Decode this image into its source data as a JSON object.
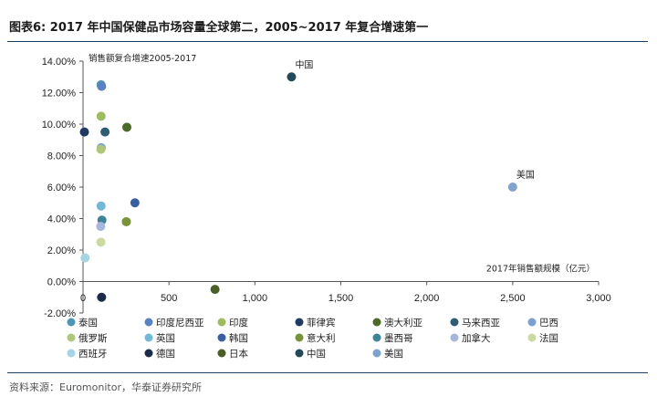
{
  "figure_title": "图表6:  2017 年中国保健品市场容量全球第二，2005~2017 年复合增速第一",
  "source": "资料来源：Euromonitor，华泰证券研究所",
  "chart_data": {
    "type": "scatter",
    "title": "",
    "xlabel": "2017年销售额规模（亿元）",
    "ylabel": "销售额复合增速2005-2017",
    "xlim": [
      0,
      3000
    ],
    "ylim": [
      -0.02,
      0.14
    ],
    "x_ticks": [
      0,
      500,
      1000,
      1500,
      2000,
      2500,
      3000
    ],
    "x_tick_labels": [
      "0",
      "500",
      "1,000",
      "1,500",
      "2,000",
      "2,500",
      "3,000"
    ],
    "y_ticks": [
      -0.02,
      0.0,
      0.02,
      0.04,
      0.06,
      0.08,
      0.1,
      0.12,
      0.14
    ],
    "y_tick_labels": [
      "-2.00%",
      "0.00%",
      "2.00%",
      "4.00%",
      "6.00%",
      "8.00%",
      "10.00%",
      "12.00%",
      "14.00%"
    ],
    "grid": false,
    "legend_position": "bottom",
    "series": [
      {
        "name": "泰国",
        "color": "#4f96b5",
        "x": 105,
        "y": 0.125
      },
      {
        "name": "印度尼西亚",
        "color": "#5a82c2",
        "x": 108,
        "y": 0.124
      },
      {
        "name": "印度",
        "color": "#9dbb61",
        "x": 105,
        "y": 0.105
      },
      {
        "name": "菲律宾",
        "color": "#1f3b63",
        "x": 8,
        "y": 0.095
      },
      {
        "name": "澳大利亚",
        "color": "#4d6b28",
        "x": 255,
        "y": 0.098
      },
      {
        "name": "马来西亚",
        "color": "#2e5c72",
        "x": 128,
        "y": 0.095
      },
      {
        "name": "巴西",
        "color": "#7b9fd1",
        "x": 106,
        "y": 0.085
      },
      {
        "name": "俄罗斯",
        "color": "#afc77a",
        "x": 104,
        "y": 0.084
      },
      {
        "name": "英国",
        "color": "#73b8d4",
        "x": 105,
        "y": 0.048
      },
      {
        "name": "韩国",
        "color": "#3a5fa0",
        "x": 302,
        "y": 0.05
      },
      {
        "name": "意大利",
        "color": "#77923a",
        "x": 252,
        "y": 0.038
      },
      {
        "name": "墨西哥",
        "color": "#3f8496",
        "x": 110,
        "y": 0.039
      },
      {
        "name": "加拿大",
        "color": "#a8b6dc",
        "x": 103,
        "y": 0.035
      },
      {
        "name": "法国",
        "color": "#cbd9a2",
        "x": 104,
        "y": 0.025
      },
      {
        "name": "西班牙",
        "color": "#a6d4e6",
        "x": 12,
        "y": 0.015
      },
      {
        "name": "德国",
        "color": "#1c2b4a",
        "x": 108,
        "y": -0.01
      },
      {
        "name": "日本",
        "color": "#4a5f25",
        "x": 768,
        "y": -0.005
      },
      {
        "name": "中国",
        "color": "#24495a",
        "x": 1213,
        "y": 0.13
      },
      {
        "name": "美国",
        "color": "#7fa3cc",
        "x": 2500,
        "y": 0.06
      }
    ],
    "annotations": [
      {
        "text": "中国",
        "x": 1213,
        "y": 0.13
      },
      {
        "text": "美国",
        "x": 2500,
        "y": 0.06
      }
    ]
  }
}
